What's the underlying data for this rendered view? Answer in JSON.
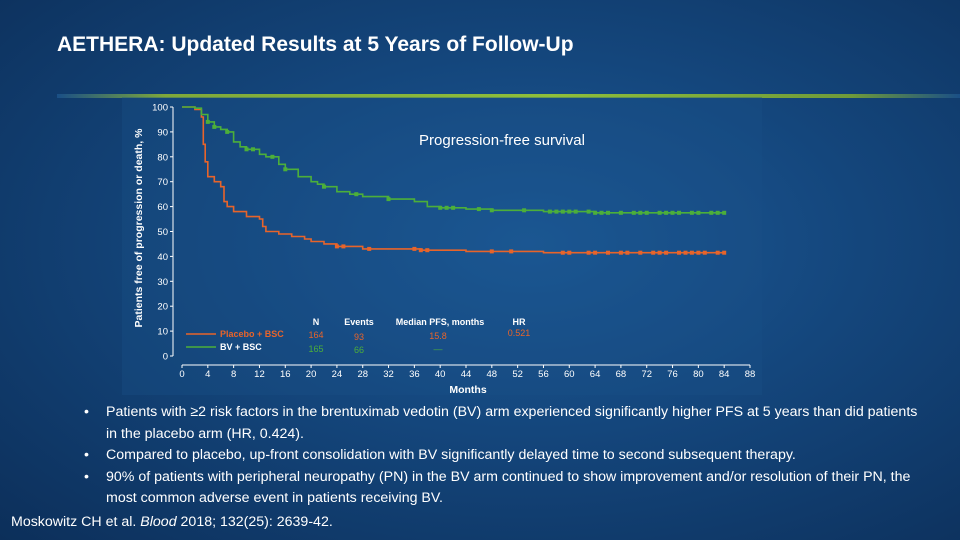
{
  "slide": {
    "title": "AETHERA: Updated Results at 5 Years of Follow-Up"
  },
  "colors": {
    "placebo": "#e8642a",
    "bv": "#4caf3a",
    "rule": "#8fbf3a"
  },
  "chart_data": {
    "type": "line",
    "title": "Progression-free survival",
    "xlabel": "Months",
    "ylabel": "Patients free of progression or death, %",
    "xlim": [
      0,
      88
    ],
    "ylim": [
      0,
      100
    ],
    "xticks": [
      0,
      4,
      8,
      12,
      16,
      20,
      24,
      28,
      32,
      36,
      40,
      44,
      48,
      52,
      56,
      60,
      64,
      68,
      72,
      76,
      80,
      84,
      88
    ],
    "yticks": [
      0,
      10,
      20,
      30,
      40,
      50,
      60,
      70,
      80,
      90,
      100
    ],
    "legend": {
      "placement": "bottom-left",
      "headers": {
        "n": "N",
        "events": "Events",
        "median": "Median PFS, months",
        "hr": "HR"
      },
      "rows": [
        {
          "name": "Placebo + BSC",
          "n": "164",
          "events": "93",
          "median": "15.8",
          "hr": "0.521"
        },
        {
          "name": "BV + BSC",
          "n": "165",
          "events": "66",
          "median": "—",
          "hr": ""
        }
      ]
    },
    "series": [
      {
        "name": "Placebo + BSC",
        "color": "#e8642a",
        "points": [
          [
            0,
            100
          ],
          [
            2,
            99
          ],
          [
            3,
            96
          ],
          [
            3.3,
            85
          ],
          [
            3.6,
            78
          ],
          [
            4,
            72
          ],
          [
            5,
            70
          ],
          [
            6,
            68
          ],
          [
            6.5,
            62
          ],
          [
            7,
            60
          ],
          [
            8,
            58
          ],
          [
            10,
            56
          ],
          [
            12,
            55
          ],
          [
            12.5,
            52
          ],
          [
            13,
            50
          ],
          [
            15,
            49
          ],
          [
            17,
            48
          ],
          [
            19,
            47
          ],
          [
            20,
            46
          ],
          [
            22,
            45
          ],
          [
            24,
            44
          ],
          [
            26,
            44
          ],
          [
            28,
            43
          ],
          [
            31,
            43
          ],
          [
            35,
            43
          ],
          [
            37,
            42.5
          ],
          [
            40,
            42.5
          ],
          [
            44,
            42
          ],
          [
            48,
            42
          ],
          [
            52,
            42
          ],
          [
            56,
            41.5
          ],
          [
            60,
            41.5
          ],
          [
            64,
            41.5
          ],
          [
            68,
            41.5
          ],
          [
            72,
            41.5
          ],
          [
            76,
            41.5
          ],
          [
            80,
            41.5
          ],
          [
            84,
            41.5
          ]
        ],
        "censor_x": [
          24,
          25,
          29,
          36,
          37,
          38,
          48,
          51,
          59,
          60,
          63,
          64,
          66,
          68,
          69,
          71,
          73,
          74,
          75,
          77,
          78,
          79,
          80,
          81,
          83,
          84
        ]
      },
      {
        "name": "BV + BSC",
        "color": "#4caf3a",
        "points": [
          [
            0,
            100
          ],
          [
            2,
            99.5
          ],
          [
            3,
            97
          ],
          [
            4,
            94
          ],
          [
            5,
            92
          ],
          [
            6,
            91
          ],
          [
            7,
            90
          ],
          [
            8,
            86
          ],
          [
            9,
            84
          ],
          [
            10,
            83
          ],
          [
            12,
            81
          ],
          [
            13,
            80
          ],
          [
            15,
            77
          ],
          [
            16,
            75
          ],
          [
            18,
            72
          ],
          [
            20,
            70
          ],
          [
            21,
            69
          ],
          [
            22,
            68
          ],
          [
            24,
            66
          ],
          [
            26,
            65
          ],
          [
            28,
            64
          ],
          [
            32,
            63
          ],
          [
            36,
            62
          ],
          [
            38,
            60
          ],
          [
            40,
            59.5
          ],
          [
            44,
            59
          ],
          [
            48,
            58.5
          ],
          [
            52,
            58.5
          ],
          [
            56,
            58
          ],
          [
            60,
            58
          ],
          [
            64,
            57.5
          ],
          [
            68,
            57.5
          ],
          [
            72,
            57.5
          ],
          [
            76,
            57.5
          ],
          [
            80,
            57.5
          ],
          [
            84,
            57.5
          ]
        ],
        "censor_x": [
          4,
          5,
          7,
          10,
          11,
          14,
          16,
          22,
          27,
          32,
          40,
          41,
          42,
          46,
          48,
          53,
          57,
          58,
          59,
          60,
          61,
          63,
          64,
          65,
          66,
          68,
          70,
          71,
          72,
          74,
          75,
          76,
          77,
          79,
          80,
          82,
          83,
          84
        ]
      }
    ]
  },
  "bullets": [
    "Patients with ≥2 risk factors in the brentuximab vedotin (BV) arm experienced significantly higher PFS at 5 years than did patients in the placebo arm (HR, 0.424).",
    "Compared to placebo, up-front consolidation with BV significantly delayed time to second subsequent therapy.",
    "90% of patients with peripheral neuropathy (PN) in the BV arm continued to show improvement and/or resolution of their PN, the most common adverse event in patients receiving BV."
  ],
  "bullet_glyph": "•",
  "citation": {
    "prefix": "Moskowitz CH et al. ",
    "journal": "Blood",
    "suffix": " 2018; 132(25): 2639-42."
  }
}
